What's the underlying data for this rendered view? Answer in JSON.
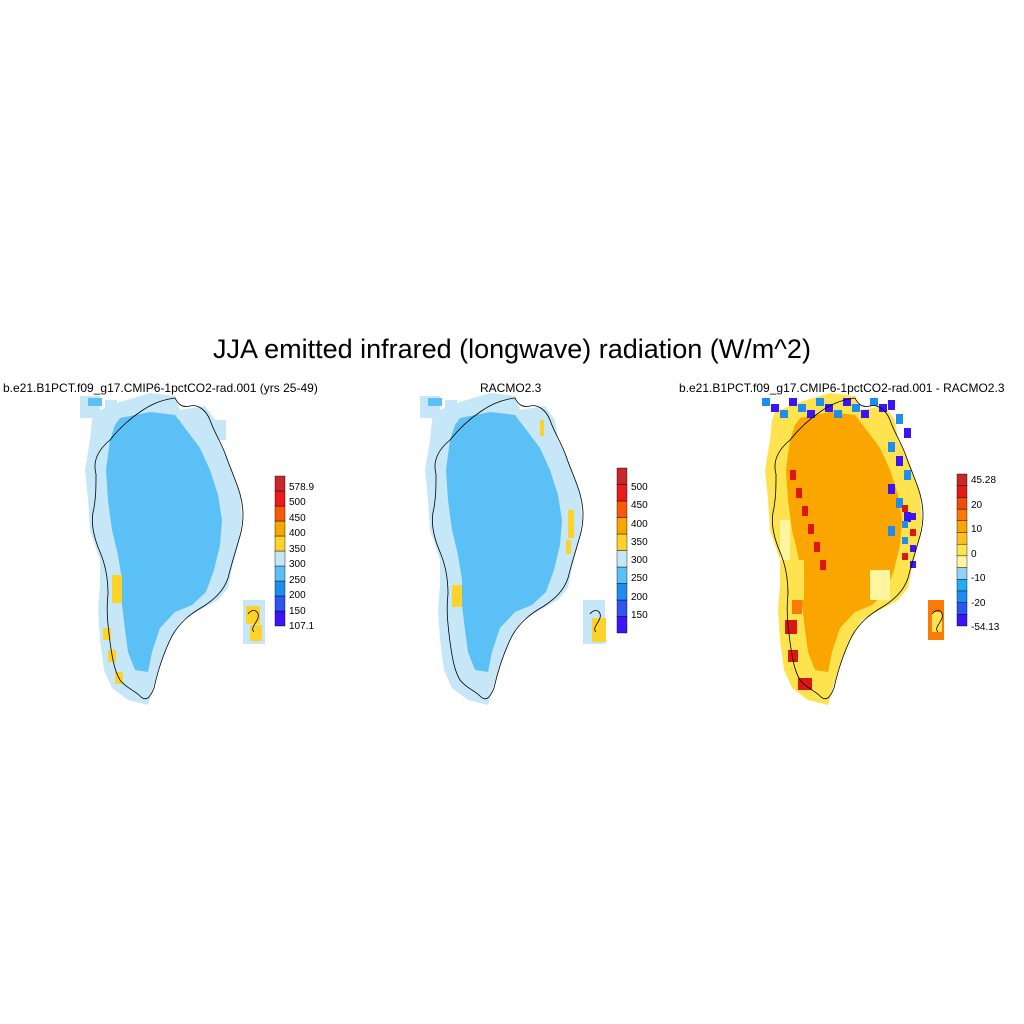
{
  "figure": {
    "title": "JJA emitted infrared (longwave) radiation (W/m^2)"
  },
  "panels": [
    {
      "id": "model",
      "title": "b.e21.B1PCT.f09_g17.CMIP6-1pctCO2-rad.001 (yrs 25-49)",
      "field": {
        "interior_class": "300-350",
        "margin_class": "250-300",
        "warm_patches_class": "350-400",
        "colors": {
          "interior": "#5bc0f5",
          "margin": "#c6e7f7",
          "warm": "#fdd32a"
        }
      },
      "colorbar": {
        "colors": [
          "#3b14f7",
          "#2f55f0",
          "#1f8df0",
          "#5bc0f5",
          "#c6e7f7",
          "#fdd32a",
          "#f7a500",
          "#f95a0a",
          "#ef1a1a",
          "#c8282b"
        ],
        "labels": [
          "107.1",
          "150",
          "200",
          "250",
          "300",
          "350",
          "400",
          "450",
          "500",
          "578.9"
        ]
      }
    },
    {
      "id": "obs",
      "title": "RACMO2.3",
      "field": {
        "interior_class": "300-350",
        "margin_class": "250-300",
        "warm_patches_class": "350-400",
        "colors": {
          "interior": "#5bc0f5",
          "margin": "#c6e7f7",
          "warm": "#fdd32a"
        }
      },
      "colorbar": {
        "colors": [
          "#3b14f7",
          "#2f55f0",
          "#1f8df0",
          "#5bc0f5",
          "#c6e7f7",
          "#fdd32a",
          "#f7a500",
          "#f95a0a",
          "#ef1a1a",
          "#c8282b"
        ],
        "labels": [
          "150",
          "200",
          "250",
          "300",
          "350",
          "400",
          "450",
          "500"
        ]
      }
    },
    {
      "id": "diff",
      "title": "b.e21.B1PCT.f09_g17.CMIP6-1pctCO2-rad.001 - RACMO2.3",
      "field": {
        "interior_class": "0-10",
        "south_class": "5-10",
        "colors": {
          "interior": "#fba600",
          "south": "#fde44e",
          "pale": "#fff4a0",
          "cold1": "#1f8df0",
          "cold2": "#3b14f7",
          "hot": "#dc1515"
        }
      },
      "colorbar": {
        "colors": [
          "#3b14f7",
          "#2f55f0",
          "#1f8df0",
          "#20adf5",
          "#8fd3f7",
          "#fff4a0",
          "#fde44e",
          "#fdc020",
          "#fba600",
          "#f97a08",
          "#f24a0c",
          "#e11b16",
          "#c8282b"
        ],
        "labels": [
          "-54.13",
          "-20",
          "-10",
          "0",
          "10",
          "20",
          "45.28"
        ]
      }
    }
  ]
}
